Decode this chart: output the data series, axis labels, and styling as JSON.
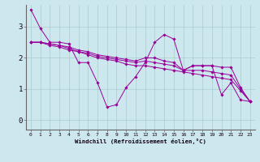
{
  "xlabel": "Windchill (Refroidissement éolien,°C)",
  "background_color": "#cce8ee",
  "line_color": "#990099",
  "grid_color": "#aacccc",
  "x_ticks": [
    0,
    1,
    2,
    3,
    4,
    5,
    6,
    7,
    8,
    9,
    10,
    11,
    12,
    13,
    14,
    15,
    16,
    17,
    18,
    19,
    20,
    21,
    22,
    23
  ],
  "y_ticks": [
    0,
    1,
    2,
    3
  ],
  "xlim": [
    -0.5,
    23.5
  ],
  "ylim": [
    -0.3,
    3.7
  ],
  "series": [
    [
      3.55,
      2.95,
      2.5,
      2.5,
      2.45,
      1.85,
      1.85,
      1.2,
      0.42,
      0.5,
      1.05,
      1.4,
      1.85,
      2.5,
      2.75,
      2.6,
      1.6,
      1.75,
      1.75,
      1.75,
      0.82,
      1.2,
      0.65,
      0.6
    ],
    [
      2.5,
      2.5,
      2.45,
      2.4,
      2.35,
      2.25,
      2.2,
      2.1,
      2.05,
      2.0,
      1.95,
      1.9,
      2.0,
      2.0,
      1.9,
      1.85,
      1.6,
      1.75,
      1.75,
      1.75,
      1.7,
      1.7,
      1.05,
      0.6
    ],
    [
      2.5,
      2.5,
      2.45,
      2.4,
      2.3,
      2.2,
      2.15,
      2.05,
      2.0,
      1.95,
      1.9,
      1.85,
      1.9,
      1.85,
      1.8,
      1.75,
      1.6,
      1.6,
      1.6,
      1.55,
      1.5,
      1.45,
      1.0,
      0.6
    ],
    [
      2.5,
      2.5,
      2.4,
      2.35,
      2.25,
      2.2,
      2.1,
      2.0,
      1.95,
      1.9,
      1.8,
      1.75,
      1.75,
      1.7,
      1.65,
      1.6,
      1.55,
      1.5,
      1.45,
      1.4,
      1.35,
      1.3,
      0.95,
      0.6
    ]
  ]
}
